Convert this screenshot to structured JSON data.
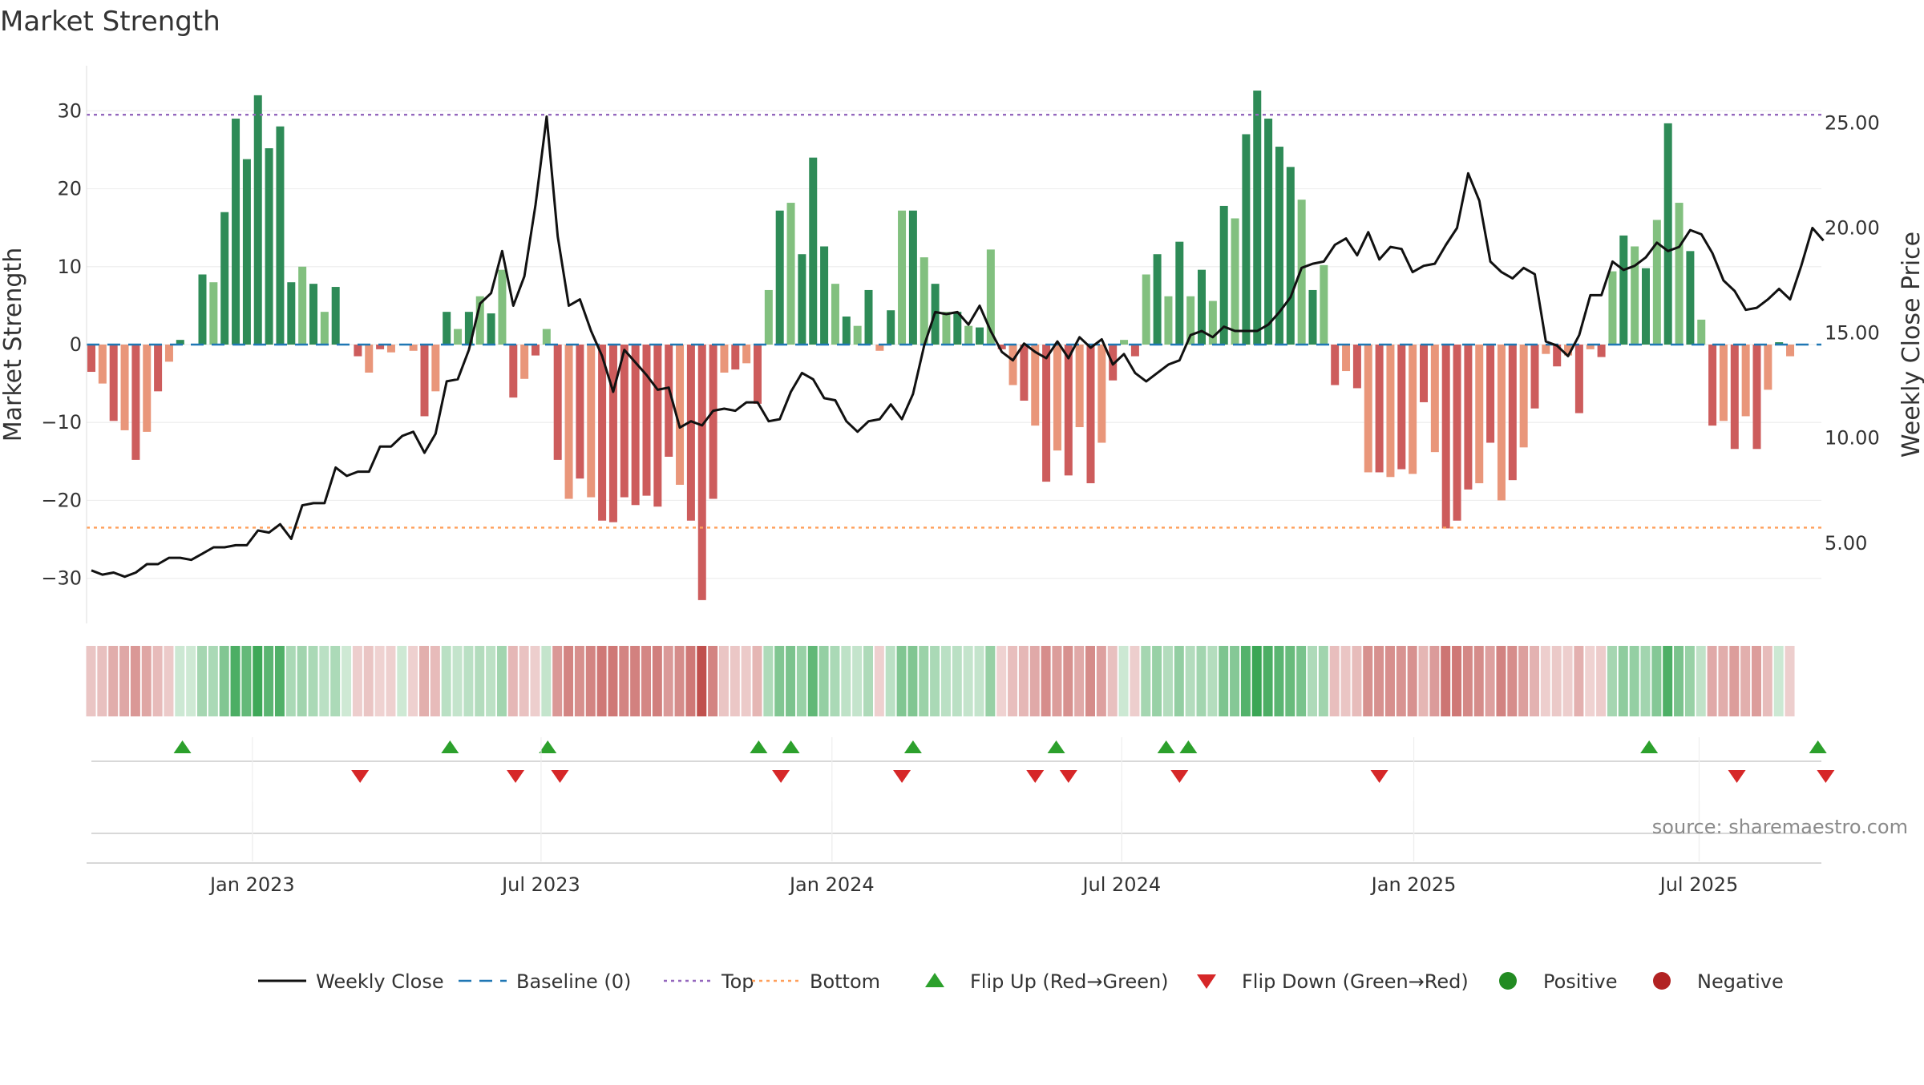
{
  "chart_data": {
    "type": "bar",
    "title": "Market Strength",
    "ylabel_left": "Market Strength",
    "ylabel_right": "Weekly Close Price",
    "ylim_left": [
      -36,
      36
    ],
    "ylim_right": [
      1.1,
      27.8
    ],
    "left_ticks": [
      30,
      20,
      10,
      0,
      -10,
      -20,
      -30
    ],
    "left_tick_labels": [
      "30",
      "20",
      "10",
      "0",
      "−10",
      "−20",
      "−30"
    ],
    "right_ticks": [
      25,
      20,
      15,
      10,
      5
    ],
    "right_tick_labels": [
      "25.00",
      "20.00",
      "15.00",
      "10.00",
      "5.00"
    ],
    "x_tick_labels": [
      "Jan 2023",
      "Jul 2023",
      "Jan 2024",
      "Jul 2024",
      "Jan 2025",
      "Jul 2025"
    ],
    "x_tick_weeks": [
      14.5,
      40.5,
      66.7,
      92.8,
      119.1,
      144.8
    ],
    "top_level": 29.5,
    "bottom_level": -23.5,
    "strength": [
      -3.5,
      -5,
      -9.8,
      -11,
      -14.8,
      -11.2,
      -6,
      -2.2,
      0.6,
      0,
      9,
      8,
      17,
      29,
      23.8,
      32,
      25.2,
      28,
      8,
      10,
      7.8,
      4.2,
      7.4,
      0,
      -1.5,
      -3.6,
      -0.6,
      -1,
      0,
      -0.8,
      -9.2,
      -6,
      4.2,
      2,
      4.2,
      6.2,
      4,
      9.6,
      -6.8,
      -4.4,
      -1.4,
      2,
      -14.8,
      -19.8,
      -17.2,
      -19.6,
      -22.6,
      -22.8,
      -19.6,
      -20.6,
      -19.4,
      -20.8,
      -14.4,
      -18,
      -22.6,
      -32.8,
      -19.8,
      -3.6,
      -3.2,
      -2.4,
      -7.6,
      7,
      17.2,
      18.2,
      11.6,
      24,
      12.6,
      7.8,
      3.6,
      2.4,
      7,
      -0.8,
      4.4,
      17.2,
      17.2,
      11.2,
      7.8,
      4.2,
      4.2,
      2.4,
      2.2,
      12.2,
      -0.6,
      -5.2,
      -7.2,
      -10.4,
      -17.6,
      -13.6,
      -16.8,
      -10.6,
      -17.8,
      -12.6,
      -4.6,
      0.6,
      -1.5,
      9,
      11.6,
      6.2,
      13.2,
      6.2,
      9.6,
      5.6,
      17.8,
      16.2,
      27,
      32.6,
      29,
      25.4,
      22.8,
      18.6,
      7,
      10.2,
      -5.2,
      -3.4,
      -5.6,
      -16.4,
      -16.4,
      -17,
      -16,
      -16.6,
      -7.4,
      -13.8,
      -23.6,
      -22.6,
      -18.6,
      -17.8,
      -12.6,
      -20,
      -17.4,
      -13.2,
      -8.2,
      -1.2,
      -2.8,
      -1.4,
      -8.8,
      -0.6,
      -1.6,
      9.4,
      14,
      12.6,
      9.8,
      16,
      28.4,
      18.2,
      12,
      3.2,
      -10.4,
      -9.8,
      -13.4,
      -9.2,
      -13.4,
      -5.8,
      0.3,
      -1.5
    ],
    "weekly_close": [
      3.7,
      3.5,
      3.6,
      3.4,
      3.6,
      4,
      4,
      4.3,
      4.3,
      4.2,
      4.5,
      4.8,
      4.8,
      4.9,
      4.9,
      5.6,
      5.5,
      5.9,
      5.2,
      6.8,
      6.9,
      6.9,
      8.6,
      8.2,
      8.4,
      8.4,
      9.6,
      9.6,
      10.1,
      10.3,
      9.3,
      10.2,
      12.7,
      12.8,
      14.2,
      16.4,
      16.9,
      18.9,
      16.3,
      17.7,
      21.1,
      25.3,
      19.6,
      16.3,
      16.6,
      15.1,
      13.9,
      12.2,
      14.2,
      13.6,
      13,
      12.3,
      12.4,
      10.5,
      10.8,
      10.6,
      11.3,
      11.4,
      11.3,
      11.7,
      11.7,
      10.8,
      10.9,
      12.2,
      13.1,
      12.8,
      11.9,
      11.8,
      10.8,
      10.3,
      10.8,
      10.9,
      11.6,
      10.9,
      12.1,
      14.4,
      16,
      15.9,
      16,
      15.4,
      16.3,
      15.1,
      14.1,
      13.7,
      14.5,
      14.1,
      13.8,
      14.6,
      13.8,
      14.8,
      14.3,
      14.7,
      13.5,
      14,
      13.1,
      12.7,
      13.1,
      13.5,
      13.7,
      14.9,
      15.1,
      14.8,
      15.3,
      15.1,
      15.1,
      15.1,
      15.4,
      16,
      16.7,
      18.1,
      18.3,
      18.4,
      19.2,
      19.5,
      18.7,
      19.8,
      18.5,
      19.1,
      19,
      17.9,
      18.2,
      18.3,
      19.2,
      20,
      22.6,
      21.3,
      18.4,
      17.9,
      17.6,
      18.1,
      17.8,
      14.6,
      14.4,
      13.9,
      14.9,
      16.8,
      16.8,
      18.4,
      18,
      18.2,
      18.6,
      19.3,
      18.9,
      19.1,
      19.9,
      19.7,
      18.8,
      17.5,
      17,
      16.1,
      16.2,
      16.6,
      17.1,
      16.6,
      18.2,
      20,
      19.4
    ],
    "flip_up_weeks": [
      8.2,
      32.3,
      41.1,
      60.1,
      63,
      74,
      86.9,
      96.8,
      98.8,
      140.3,
      155.5
    ],
    "flip_down_weeks": [
      24.2,
      38.2,
      42.2,
      62.1,
      73,
      85,
      88,
      98,
      116,
      148.2,
      156.2
    ],
    "series": [
      {
        "name": "Weekly Close",
        "style": "line",
        "color": "#111111"
      },
      {
        "name": "Baseline (0)",
        "style": "dash",
        "color": "#1f77b4"
      },
      {
        "name": "Top",
        "style": "dot",
        "color": "#9467bd"
      },
      {
        "name": "Bottom",
        "style": "dot",
        "color": "#ff9f5a"
      },
      {
        "name": "Flip Up (Red→Green)",
        "style": "triangle-up",
        "color": "#2ca02c"
      },
      {
        "name": "Flip Down (Green→Red)",
        "style": "triangle-down",
        "color": "#d62728"
      },
      {
        "name": "Positive",
        "style": "circle",
        "color": "#228b22"
      },
      {
        "name": "Negative",
        "style": "circle",
        "color": "#b22222"
      }
    ],
    "colors": {
      "strong_pos": "#2e8b57",
      "weak_pos": "#82c07f",
      "strong_neg": "#cd5c5c",
      "weak_neg": "#e9967a"
    },
    "source": "source: sharemaestro.com"
  }
}
